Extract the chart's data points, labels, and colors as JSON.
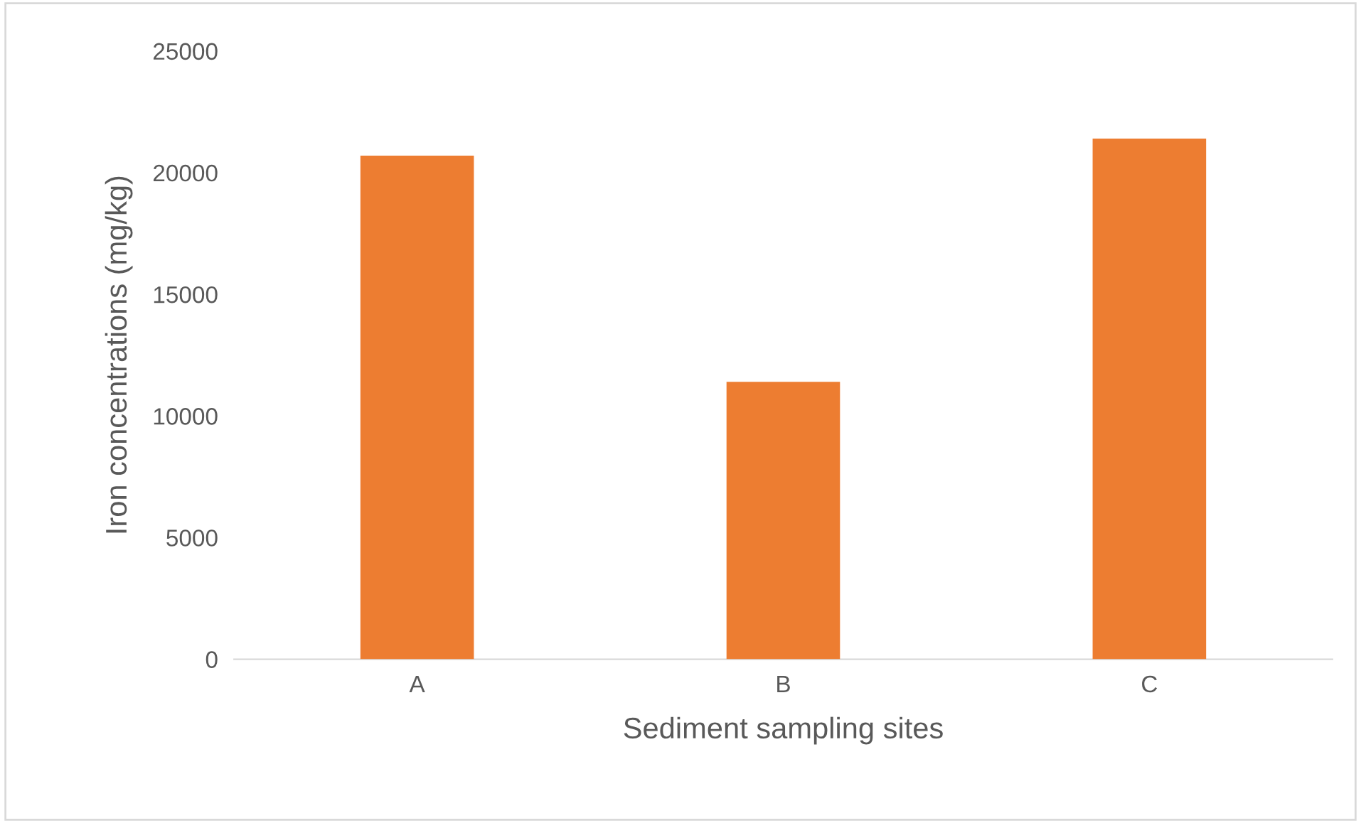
{
  "chart_data": {
    "type": "bar",
    "xlabel": "Sediment sampling sites",
    "ylabel": "Iron concentrations (mg/kg)",
    "categories": [
      "A",
      "B",
      "C"
    ],
    "values": [
      20700,
      11400,
      21400
    ],
    "color": "#ed7d31",
    "ylim": [
      0,
      25000
    ],
    "yticks": [
      0,
      5000,
      10000,
      15000,
      20000,
      25000
    ],
    "grid": false
  }
}
